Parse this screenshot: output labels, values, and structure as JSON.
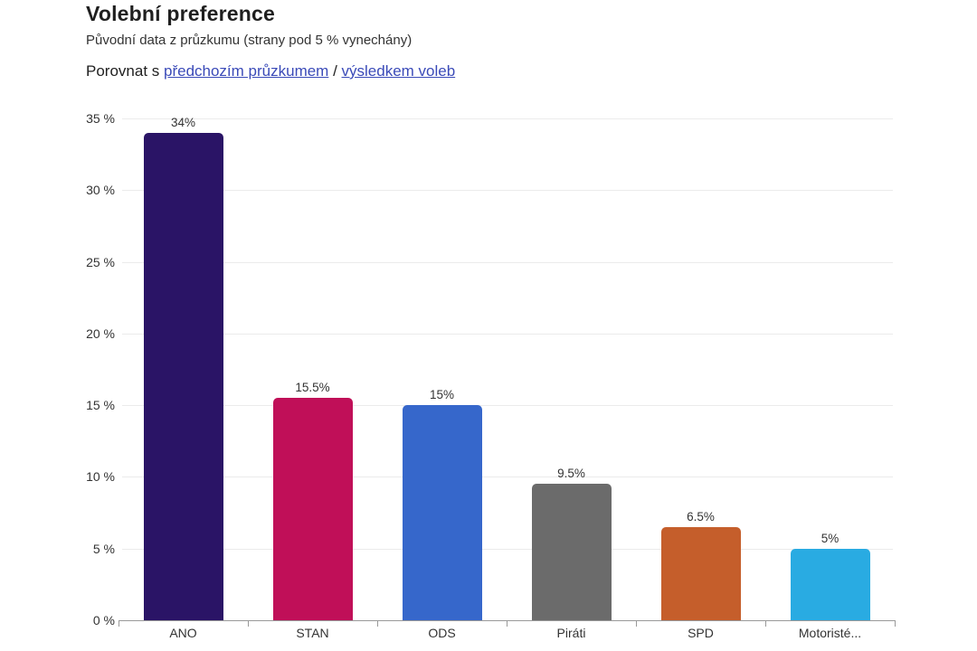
{
  "header": {
    "title": "Volební preference",
    "subtitle": "Původní data z průzkumu (strany pod 5 % vynechány)",
    "compare_prefix": "Porovnat s ",
    "compare_link_survey": "předchozím průzkumem",
    "compare_separator": " / ",
    "compare_link_results": "výsledkem voleb"
  },
  "chart_data": {
    "type": "bar",
    "title": "Volební preference",
    "categories": [
      "ANO",
      "STAN",
      "ODS",
      "Piráti",
      "SPD",
      "Motoristé..."
    ],
    "values": [
      34,
      15.5,
      15,
      9.5,
      6.5,
      5
    ],
    "value_labels": [
      "34%",
      "15.5%",
      "15%",
      "9.5%",
      "6.5%",
      "5%"
    ],
    "bar_colors": [
      "#2a1466",
      "#c00f58",
      "#3667cb",
      "#6b6b6b",
      "#c55e2b",
      "#29abe2"
    ],
    "xlabel": "",
    "ylabel": "",
    "ylim": [
      0,
      35
    ],
    "ytick_step": 5,
    "ytick_suffix": " %",
    "grid": true,
    "legend_position": "none"
  },
  "colors": {
    "link": "#3a4ab8",
    "gridline": "#ebebeb",
    "axis": "#999999",
    "label_text": "#333333"
  }
}
